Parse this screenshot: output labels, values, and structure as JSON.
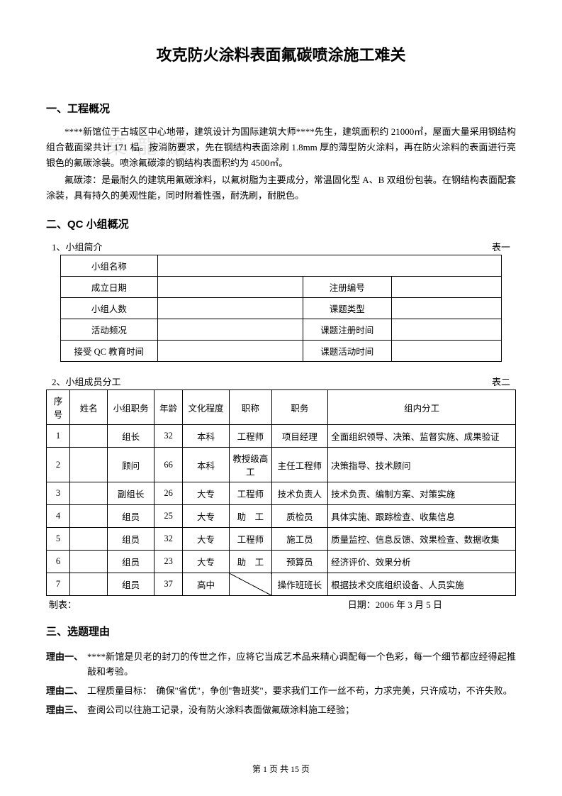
{
  "title": "攻克防火涂料表面氟碳喷涂施工难关",
  "watermark": "築 龍 網",
  "section1": {
    "heading": "一、工程概况",
    "para1": "****新馆位于古城区中心地带，建筑设计为国际建筑大师****先生，建筑面积约 21000㎡，屋面大量采用钢结构组合截面梁共计 171 榀。按消防要求，先在钢结构表面涂刷 1.8mm 厚的薄型防火涂料，再在防火涂料的表面进行亮银色的氟碳涂装。喷涂氟碳漆的钢结构表面积约为 4500㎡。",
    "para2": "氟碳漆：是最耐久的建筑用氟碳涂料，以氟树脂为主要成分，常温固化型 A、B 双组份包装。在钢结构表面配套涂装，具有持久的美观性能，同时附着性强，耐洗刷，耐脱色。"
  },
  "section2": {
    "heading": "二、QC 小组概况",
    "table1": {
      "caption_left": "1、小组简介",
      "caption_right": "表一",
      "rows": [
        [
          "小组名称",
          "",
          "",
          ""
        ],
        [
          "成立日期",
          "",
          "注册编号",
          ""
        ],
        [
          "小组人数",
          "",
          "课题类型",
          ""
        ],
        [
          "活动频况",
          "",
          "课题注册时间",
          ""
        ],
        [
          "接受 QC 教育时间",
          "",
          "课题活动时间",
          ""
        ]
      ]
    },
    "table2": {
      "caption_left": "2、小组成员分工",
      "caption_right": "表二",
      "headers": [
        "序号",
        "姓名",
        "小组职务",
        "年龄",
        "文化程度",
        "职称",
        "职务",
        "组内分工"
      ],
      "rows": [
        {
          "seq": "1",
          "name": "",
          "role": "组长",
          "age": "32",
          "edu": "本科",
          "title": "工程师",
          "duty": "项目经理",
          "work": "全面组织领导、决策、监督实施、成果验证"
        },
        {
          "seq": "2",
          "name": "",
          "role": "顾问",
          "age": "66",
          "edu": "本科",
          "title": "教授级高工",
          "duty": "主任工程师",
          "work": "决策指导、技术顾问"
        },
        {
          "seq": "3",
          "name": "",
          "role": "副组长",
          "age": "26",
          "edu": "大专",
          "title": "工程师",
          "duty": "技术负责人",
          "work": "技术负责、编制方案、对策实施"
        },
        {
          "seq": "4",
          "name": "",
          "role": "组员",
          "age": "25",
          "edu": "大专",
          "title": "助　工",
          "duty": "质检员",
          "work": "具体实施、跟踪检查、收集信息"
        },
        {
          "seq": "5",
          "name": "",
          "role": "组员",
          "age": "32",
          "edu": "大专",
          "title": "工程师",
          "duty": "施工员",
          "work": "质量监控、信息反馈、效果检查、数据收集"
        },
        {
          "seq": "6",
          "name": "",
          "role": "组员",
          "age": "23",
          "edu": "大专",
          "title": "助　工",
          "duty": "预算员",
          "work": "经济评价、效果分析"
        },
        {
          "seq": "7",
          "name": "",
          "role": "组员",
          "age": "37",
          "edu": "高中",
          "title": "",
          "duty": "操作班班长",
          "work": "根据技术交底组织设备、人员实施",
          "diag": true
        }
      ],
      "footer_left": "制表：",
      "footer_right": "日期：2006 年 3 月 5 日"
    }
  },
  "section3": {
    "heading": "三、选题理由",
    "reasons": [
      {
        "label": "理由一、",
        "text": "****新馆是贝老的封刀的传世之作，应将它当成艺术品来精心调配每一个色彩，每一个细节都应经得起推敲和考验。"
      },
      {
        "label": "理由二、",
        "text": "工程质量目标：　确保\"省优\"，争创\"鲁班奖\"，要求我们工作一丝不苟，力求完美，只许成功，不许失败。"
      },
      {
        "label": "理由三、",
        "text": "查阅公司以往施工记录，没有防火涂料表面做氟碳涂料施工经验；"
      }
    ]
  },
  "footer": "第 1 页 共 15 页"
}
